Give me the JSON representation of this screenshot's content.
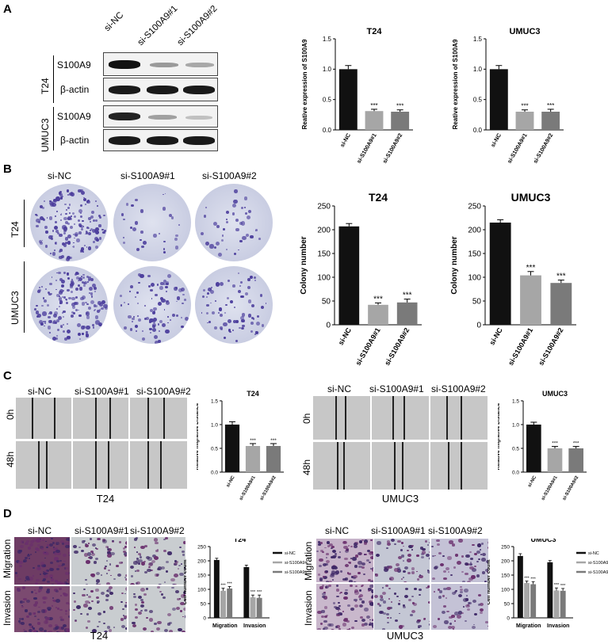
{
  "panels": {
    "A": "A",
    "B": "B",
    "C": "C",
    "D": "D"
  },
  "conditions": [
    "si-NC",
    "si-S100A9#1",
    "si-S100A9#2"
  ],
  "cell_lines": [
    "T24",
    "UMUC3"
  ],
  "blot": {
    "proteins": [
      "S100A9",
      "β-actin"
    ]
  },
  "times": [
    "0h",
    "48h"
  ],
  "assays": [
    "Migration",
    "Invasion"
  ],
  "legend": [
    "si-NC",
    "si-S100A9#1",
    "si-S100A9#2"
  ],
  "colors": {
    "ctrl": "#111111",
    "kd1": "#a6a6a6",
    "kd2": "#7a7a7a"
  },
  "chart_data": [
    {
      "id": "a_t24",
      "type": "bar",
      "title": "T24",
      "ylabel": "Reative expression of S100A9",
      "categories": [
        "si-NC",
        "si-S100A9#1",
        "si-S100A9#2"
      ],
      "values": [
        1.0,
        0.31,
        0.3
      ],
      "errors": [
        0.06,
        0.03,
        0.03
      ],
      "ylim": [
        0,
        1.5
      ],
      "yticks": [
        "0.0",
        "0.5",
        "1.0",
        "1.5"
      ],
      "stars": [
        "",
        "***",
        "***"
      ]
    },
    {
      "id": "a_umuc3",
      "type": "bar",
      "title": "UMUC3",
      "ylabel": "Reative expression of S100A9",
      "categories": [
        "si-NC",
        "si-S100A9#1",
        "si-S100A9#2"
      ],
      "values": [
        1.0,
        0.3,
        0.3
      ],
      "errors": [
        0.06,
        0.03,
        0.04
      ],
      "ylim": [
        0,
        1.5
      ],
      "yticks": [
        "0.0",
        "0.5",
        "1.0",
        "1.5"
      ],
      "stars": [
        "",
        "***",
        "***"
      ]
    },
    {
      "id": "b_t24",
      "type": "bar",
      "title": "T24",
      "ylabel": "Colony number",
      "categories": [
        "si-NC",
        "si-S100A9#1",
        "si-S100A9#2"
      ],
      "values": [
        207,
        42,
        47
      ],
      "errors": [
        6,
        4,
        7
      ],
      "ylim": [
        0,
        250
      ],
      "yticks": [
        "0",
        "50",
        "100",
        "150",
        "200",
        "250"
      ],
      "stars": [
        "",
        "***",
        "***"
      ]
    },
    {
      "id": "b_umuc3",
      "type": "bar",
      "title": "UMUC3",
      "ylabel": "Colony number",
      "categories": [
        "si-NC",
        "si-S100A9#1",
        "si-S100A9#2"
      ],
      "values": [
        215,
        104,
        88
      ],
      "errors": [
        6,
        8,
        6
      ],
      "ylim": [
        0,
        250
      ],
      "yticks": [
        "0",
        "50",
        "100",
        "150",
        "200",
        "250"
      ],
      "stars": [
        "",
        "***",
        "***"
      ]
    },
    {
      "id": "c_t24",
      "type": "bar",
      "title": "T24",
      "ylabel": "Relative migrative Distance",
      "categories": [
        "si-NC",
        "si-S100A9#1",
        "si-S100A9#2"
      ],
      "values": [
        1.0,
        0.55,
        0.55
      ],
      "errors": [
        0.06,
        0.05,
        0.05
      ],
      "ylim": [
        0,
        1.5
      ],
      "yticks": [
        "0.0",
        "0.5",
        "1.0",
        "1.5"
      ],
      "stars": [
        "",
        "***",
        "***"
      ]
    },
    {
      "id": "c_umuc3",
      "type": "bar",
      "title": "UMUC3",
      "ylabel": "Relative migrative Distance",
      "categories": [
        "si-NC",
        "si-S100A9#1",
        "si-S100A9#2"
      ],
      "values": [
        1.0,
        0.5,
        0.5
      ],
      "errors": [
        0.05,
        0.04,
        0.04
      ],
      "ylim": [
        0,
        1.5
      ],
      "yticks": [
        "0.0",
        "0.5",
        "1.0",
        "1.5"
      ],
      "stars": [
        "",
        "***",
        "***"
      ]
    },
    {
      "id": "d_t24",
      "type": "bar",
      "title": "T24",
      "ylabel": "Cell number count",
      "categories": [
        "Migration",
        "Invasion"
      ],
      "series": [
        {
          "name": "si-NC",
          "values": [
            203,
            178
          ],
          "errors": [
            6,
            7
          ]
        },
        {
          "name": "si-S100A9#1",
          "values": [
            95,
            72
          ],
          "errors": [
            9,
            8
          ]
        },
        {
          "name": "si-S100A9#2",
          "values": [
            103,
            70
          ],
          "errors": [
            7,
            10
          ]
        }
      ],
      "ylim": [
        0,
        250
      ],
      "yticks": [
        "0",
        "50",
        "100",
        "150",
        "200",
        "250"
      ],
      "stars": [
        "***",
        "***"
      ]
    },
    {
      "id": "d_umuc3",
      "type": "bar",
      "title": "UMUC3",
      "ylabel": "Cell number count",
      "categories": [
        "Migration",
        "Invasion"
      ],
      "series": [
        {
          "name": "si-NC",
          "values": [
            217,
            195
          ],
          "errors": [
            8,
            6
          ]
        },
        {
          "name": "si-S100A9#1",
          "values": [
            122,
            96
          ],
          "errors": [
            7,
            9
          ]
        },
        {
          "name": "si-S100A9#2",
          "values": [
            118,
            95
          ],
          "errors": [
            9,
            8
          ]
        }
      ],
      "ylim": [
        0,
        250
      ],
      "yticks": [
        "0",
        "50",
        "100",
        "150",
        "200",
        "250"
      ],
      "stars": [
        "***",
        "***"
      ]
    }
  ]
}
